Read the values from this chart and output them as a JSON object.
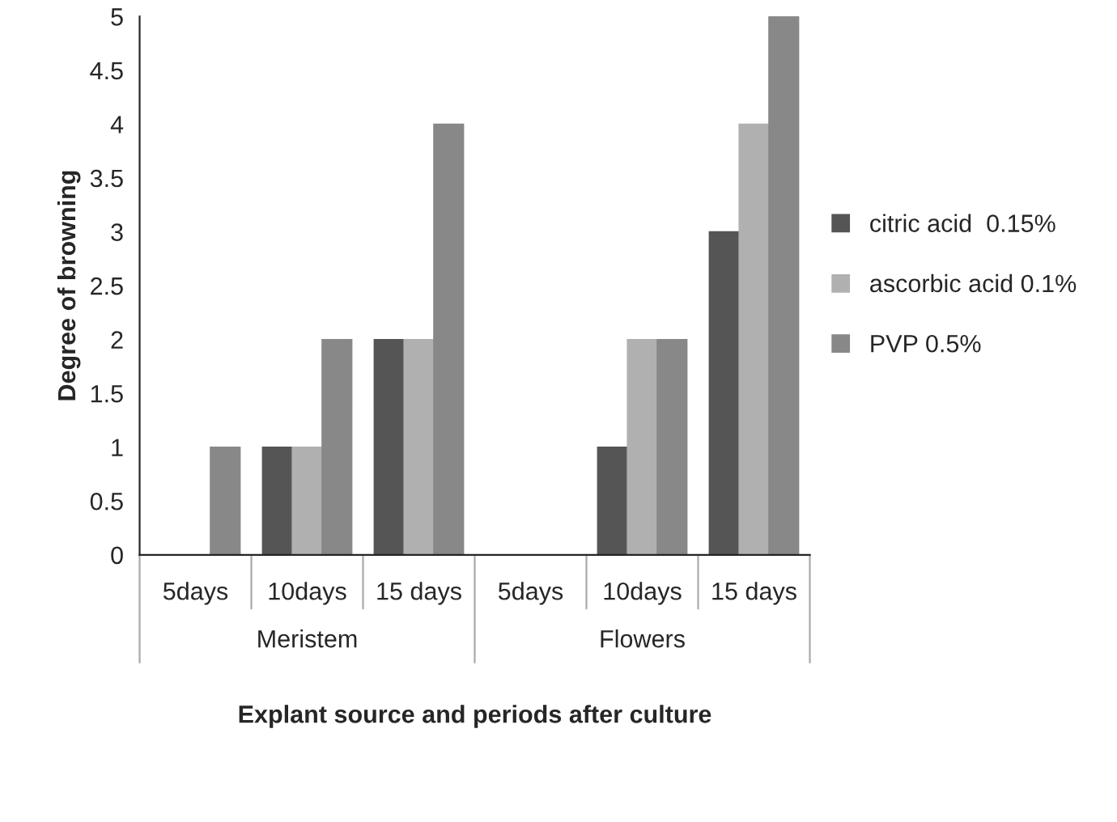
{
  "chart_data": {
    "type": "bar",
    "xlabel": "Explant source and periods after culture",
    "ylabel": "Degree of browning",
    "categories": [
      "5days",
      "10days",
      "15 days",
      "5days",
      "10days",
      "15 days"
    ],
    "series": [
      {
        "name": "citric acid  0.15%",
        "color": "#555555",
        "values": [
          0,
          1,
          2,
          0,
          1,
          3
        ]
      },
      {
        "name": "ascorbic acid 0.1%",
        "color": "#b0b0b0",
        "values": [
          0,
          1,
          2,
          0,
          2,
          4
        ]
      },
      {
        "name": "PVP 0.5%",
        "color": "#888888",
        "values": [
          1,
          2,
          4,
          0,
          2,
          5
        ]
      }
    ],
    "ylim": [
      0,
      5
    ],
    "yticks": [
      0,
      0.5,
      1,
      1.5,
      2,
      2.5,
      3,
      3.5,
      4,
      4.5,
      5
    ],
    "annotations": [
      "Meristem",
      "Flowers"
    ],
    "grid": false,
    "legend": "right"
  }
}
